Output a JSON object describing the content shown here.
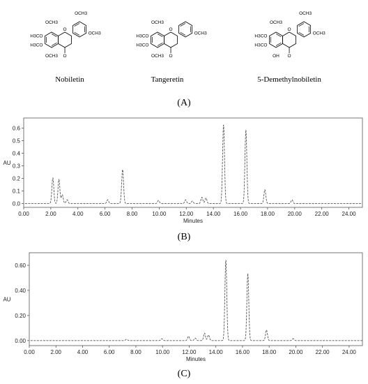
{
  "structures": [
    {
      "name": "Nobiletin",
      "groups": {
        "top": "OCH3",
        "top2": "OCH3",
        "right": "OCH3",
        "left1": "H3CO",
        "left2": "H3CO",
        "bottom": "OCH3",
        "ring_o": "O",
        "keto": "O"
      }
    },
    {
      "name": "Tangeretin",
      "groups": {
        "top": "OCH3",
        "right": "OCH3",
        "left1": "H3CO",
        "left2": "H3CO",
        "bottom": "OCH3",
        "ring_o": "O",
        "keto": "O"
      }
    },
    {
      "name": "5-Demethylnobiletin",
      "groups": {
        "top": "OCH3",
        "top2": "OCH3",
        "right": "OCH3",
        "left1": "H3CO",
        "left2": "H3CO",
        "bottom": "OH",
        "ring_o": "O",
        "keto": "O"
      }
    }
  ],
  "panel_labels": {
    "a": "(A)",
    "b": "(B)",
    "c": "(C)"
  },
  "chart_data": [
    {
      "type": "line",
      "panel": "B",
      "xlabel": "Minutes",
      "ylabel": "AU",
      "xlim": [
        0,
        25
      ],
      "ylim": [
        -0.03,
        0.68
      ],
      "x_ticks": [
        "0.00",
        "2.00",
        "4.00",
        "6.00",
        "8.00",
        "10.00",
        "12.00",
        "14.00",
        "16.00",
        "18.00",
        "20.00",
        "22.00",
        "24.00"
      ],
      "y_ticks": [
        "0.0",
        "0.1",
        "0.2",
        "0.3",
        "0.4",
        "0.5",
        "0.6"
      ],
      "line_style": "dashed",
      "baseline": 0.0,
      "peaks": [
        {
          "x": 2.15,
          "y": 0.205
        },
        {
          "x": 2.6,
          "y": 0.19
        },
        {
          "x": 2.85,
          "y": 0.07
        },
        {
          "x": 3.2,
          "y": 0.03
        },
        {
          "x": 6.2,
          "y": 0.03
        },
        {
          "x": 7.3,
          "y": 0.27
        },
        {
          "x": 9.95,
          "y": 0.025
        },
        {
          "x": 11.95,
          "y": 0.03
        },
        {
          "x": 12.45,
          "y": 0.02
        },
        {
          "x": 13.15,
          "y": 0.05
        },
        {
          "x": 13.45,
          "y": 0.045
        },
        {
          "x": 14.75,
          "y": 0.63
        },
        {
          "x": 16.4,
          "y": 0.585
        },
        {
          "x": 17.8,
          "y": 0.11
        },
        {
          "x": 19.8,
          "y": 0.03
        }
      ]
    },
    {
      "type": "line",
      "panel": "C",
      "xlabel": "Minutes",
      "ylabel": "AU",
      "xlim": [
        0,
        25
      ],
      "ylim": [
        -0.04,
        0.7
      ],
      "x_ticks": [
        "0.00",
        "2.00",
        "4.00",
        "6.00",
        "8.00",
        "10.00",
        "12.00",
        "14.00",
        "16.00",
        "18.00",
        "20.00",
        "22.00",
        "24.00"
      ],
      "y_ticks": [
        "0.00",
        "0.20",
        "0.40",
        "0.60"
      ],
      "line_style": "dashed",
      "baseline": 0.0,
      "peaks": [
        {
          "x": 7.3,
          "y": 0.01
        },
        {
          "x": 9.95,
          "y": 0.015
        },
        {
          "x": 11.95,
          "y": 0.035
        },
        {
          "x": 12.45,
          "y": 0.02
        },
        {
          "x": 13.15,
          "y": 0.06
        },
        {
          "x": 13.45,
          "y": 0.045
        },
        {
          "x": 14.75,
          "y": 0.645
        },
        {
          "x": 16.4,
          "y": 0.535
        },
        {
          "x": 17.8,
          "y": 0.085
        },
        {
          "x": 19.8,
          "y": 0.015
        }
      ]
    }
  ]
}
